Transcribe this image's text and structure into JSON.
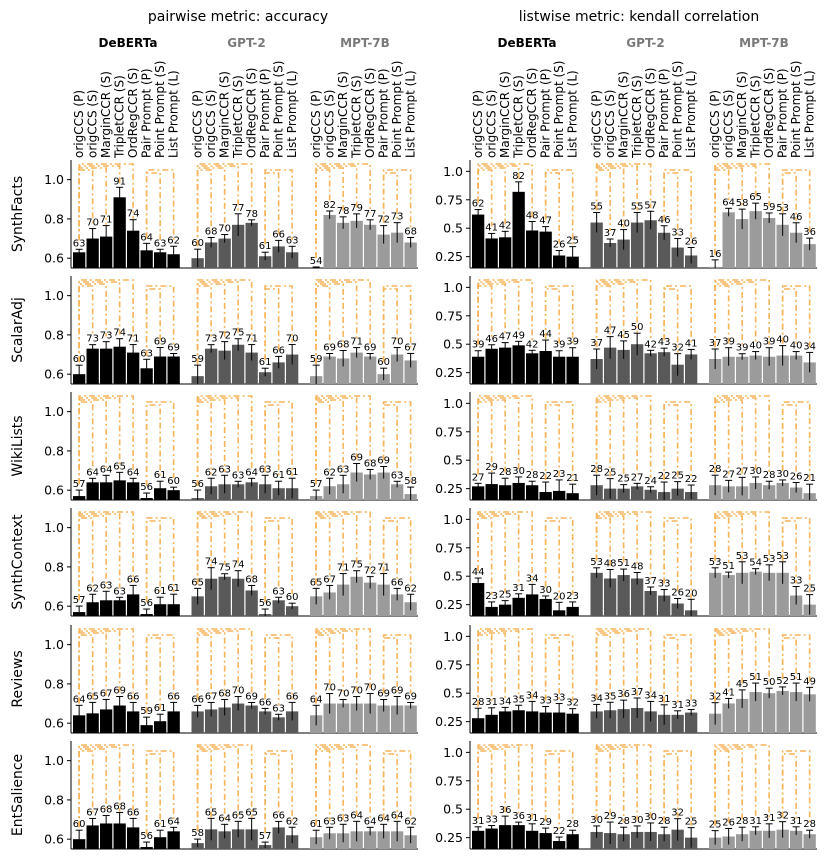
{
  "chart_data": {
    "type": "bar",
    "metrics": [
      {
        "title": "pairwise metric: accuracy",
        "yticks": [
          0.6,
          0.8,
          1.0
        ],
        "ylim": [
          0.55,
          1.1
        ]
      },
      {
        "title": "listwise metric: kendall correlation",
        "yticks": [
          0.25,
          0.5,
          0.75,
          1.0
        ],
        "ylim": [
          0.15,
          1.1
        ]
      }
    ],
    "models": [
      {
        "name": "DeBERTa",
        "color": "#000000",
        "title_color": "#000000"
      },
      {
        "name": "GPT-2",
        "color": "#595959",
        "title_color": "#7a7a7a"
      },
      {
        "name": "MPT-7B",
        "color": "#9b9b9b",
        "title_color": "#7a7a7a"
      }
    ],
    "methods": [
      "origCCS (P)",
      "origCCS (S)",
      "MarginCCR (S)",
      "TripletCCR (S)",
      "OrdRegCCR (S)",
      "Pair Prompt (P)",
      "Point Prompt (S)",
      "List Prompt (L)"
    ],
    "datasets": [
      "SynthFacts",
      "ScalarAdj",
      "WikiLists",
      "SynthContext",
      "Reviews",
      "EntSalience"
    ],
    "accent_color": "#f7b45a",
    "values": {
      "SynthFacts": {
        "pairwise": {
          "DeBERTa": [
            63,
            70,
            71,
            91,
            74,
            64,
            63,
            62
          ],
          "GPT-2": [
            60,
            68,
            70,
            77,
            78,
            61,
            66,
            63
          ],
          "MPT-7B": [
            54,
            82,
            78,
            79,
            77,
            72,
            73,
            68
          ]
        },
        "listwise": {
          "DeBERTa": [
            62,
            41,
            42,
            82,
            48,
            47,
            26,
            25
          ],
          "GPT-2": [
            55,
            37,
            40,
            55,
            57,
            46,
            33,
            26
          ],
          "MPT-7B": [
            16,
            64,
            58,
            65,
            59,
            53,
            46,
            36
          ]
        }
      },
      "ScalarAdj": {
        "pairwise": {
          "DeBERTa": [
            60,
            73,
            73,
            74,
            71,
            63,
            69,
            69
          ],
          "GPT-2": [
            59,
            73,
            72,
            75,
            71,
            61,
            66,
            70
          ],
          "MPT-7B": [
            59,
            69,
            68,
            71,
            69,
            60,
            70,
            67
          ]
        },
        "listwise": {
          "DeBERTa": [
            39,
            46,
            47,
            49,
            42,
            44,
            39,
            39
          ],
          "GPT-2": [
            37,
            47,
            45,
            50,
            42,
            43,
            32,
            41
          ],
          "MPT-7B": [
            37,
            39,
            39,
            40,
            39,
            40,
            40,
            34
          ]
        }
      },
      "WikiLists": {
        "pairwise": {
          "DeBERTa": [
            57,
            64,
            64,
            65,
            64,
            56,
            61,
            60
          ],
          "GPT-2": [
            56,
            62,
            63,
            63,
            64,
            63,
            61,
            61
          ],
          "MPT-7B": [
            57,
            62,
            63,
            69,
            68,
            69,
            63,
            58
          ]
        },
        "listwise": {
          "DeBERTa": [
            27,
            29,
            28,
            30,
            28,
            22,
            23,
            21
          ],
          "GPT-2": [
            28,
            25,
            25,
            27,
            24,
            22,
            25,
            22
          ],
          "MPT-7B": [
            28,
            27,
            27,
            30,
            28,
            30,
            26,
            21
          ]
        }
      },
      "SynthContext": {
        "pairwise": {
          "DeBERTa": [
            57,
            62,
            63,
            63,
            66,
            56,
            61,
            61
          ],
          "GPT-2": [
            65,
            74,
            75,
            74,
            68,
            56,
            63,
            60
          ],
          "MPT-7B": [
            65,
            67,
            71,
            75,
            72,
            71,
            66,
            62
          ]
        },
        "listwise": {
          "DeBERTa": [
            44,
            23,
            25,
            31,
            34,
            30,
            20,
            23
          ],
          "GPT-2": [
            53,
            48,
            51,
            48,
            37,
            33,
            26,
            20
          ],
          "MPT-7B": [
            53,
            51,
            53,
            54,
            53,
            53,
            33,
            25
          ]
        }
      },
      "Reviews": {
        "pairwise": {
          "DeBERTa": [
            64,
            65,
            67,
            69,
            66,
            59,
            61,
            66
          ],
          "GPT-2": [
            66,
            67,
            68,
            70,
            69,
            66,
            63,
            66
          ],
          "MPT-7B": [
            64,
            70,
            70,
            70,
            70,
            69,
            69,
            69
          ]
        },
        "listwise": {
          "DeBERTa": [
            28,
            31,
            34,
            35,
            34,
            33,
            33,
            32
          ],
          "GPT-2": [
            34,
            35,
            36,
            37,
            34,
            31,
            31,
            33
          ],
          "MPT-7B": [
            32,
            41,
            45,
            51,
            50,
            52,
            51,
            49
          ]
        }
      },
      "EntSalience": {
        "pairwise": {
          "DeBERTa": [
            60,
            67,
            68,
            68,
            66,
            56,
            61,
            64
          ],
          "GPT-2": [
            58,
            65,
            64,
            65,
            65,
            57,
            66,
            62
          ],
          "MPT-7B": [
            61,
            63,
            63,
            64,
            64,
            64,
            64,
            62
          ]
        },
        "listwise": {
          "DeBERTa": [
            31,
            33,
            36,
            36,
            31,
            29,
            22,
            28
          ],
          "GPT-2": [
            30,
            29,
            28,
            30,
            30,
            28,
            32,
            25
          ],
          "MPT-7B": [
            25,
            26,
            28,
            31,
            31,
            32,
            31,
            28
          ]
        }
      }
    }
  }
}
